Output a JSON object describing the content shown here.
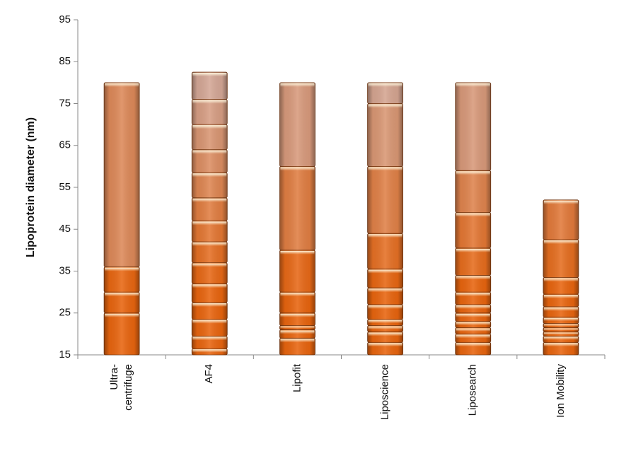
{
  "chart_data": {
    "type": "stacked-segments",
    "y_label": "Lipoprotein diameter (nm)",
    "categories": [
      [
        "Ultra-",
        "centrifuge"
      ],
      [
        "AF4"
      ],
      [
        "Lipofit"
      ],
      [
        "Liposcience"
      ],
      [
        "Liposearch"
      ],
      [
        "Ion Mobility"
      ]
    ],
    "values": [
      [
        10,
        5,
        6,
        44
      ],
      [
        1.5,
        3,
        4,
        4,
        4.5,
        5,
        5,
        5,
        5.5,
        6,
        5.5,
        6,
        6,
        6.5
      ],
      [
        4,
        2,
        1,
        3,
        5,
        10,
        20,
        20
      ],
      [
        3,
        2.5,
        1.5,
        1.5,
        3.5,
        4,
        4.5,
        8.5,
        16,
        15,
        5
      ],
      [
        3,
        2,
        1.5,
        1.5,
        2,
        2,
        3,
        4,
        6.5,
        8.5,
        10,
        21
      ],
      [
        3,
        1.5,
        1,
        1,
        1,
        1.5,
        2.5,
        3,
        4,
        9,
        9.5
      ]
    ],
    "colors": [
      "#e8650f",
      "#d4a898"
    ],
    "ylim": [
      15,
      95
    ],
    "yticks": [
      15,
      25,
      35,
      45,
      55,
      65,
      75,
      85,
      95
    ]
  }
}
